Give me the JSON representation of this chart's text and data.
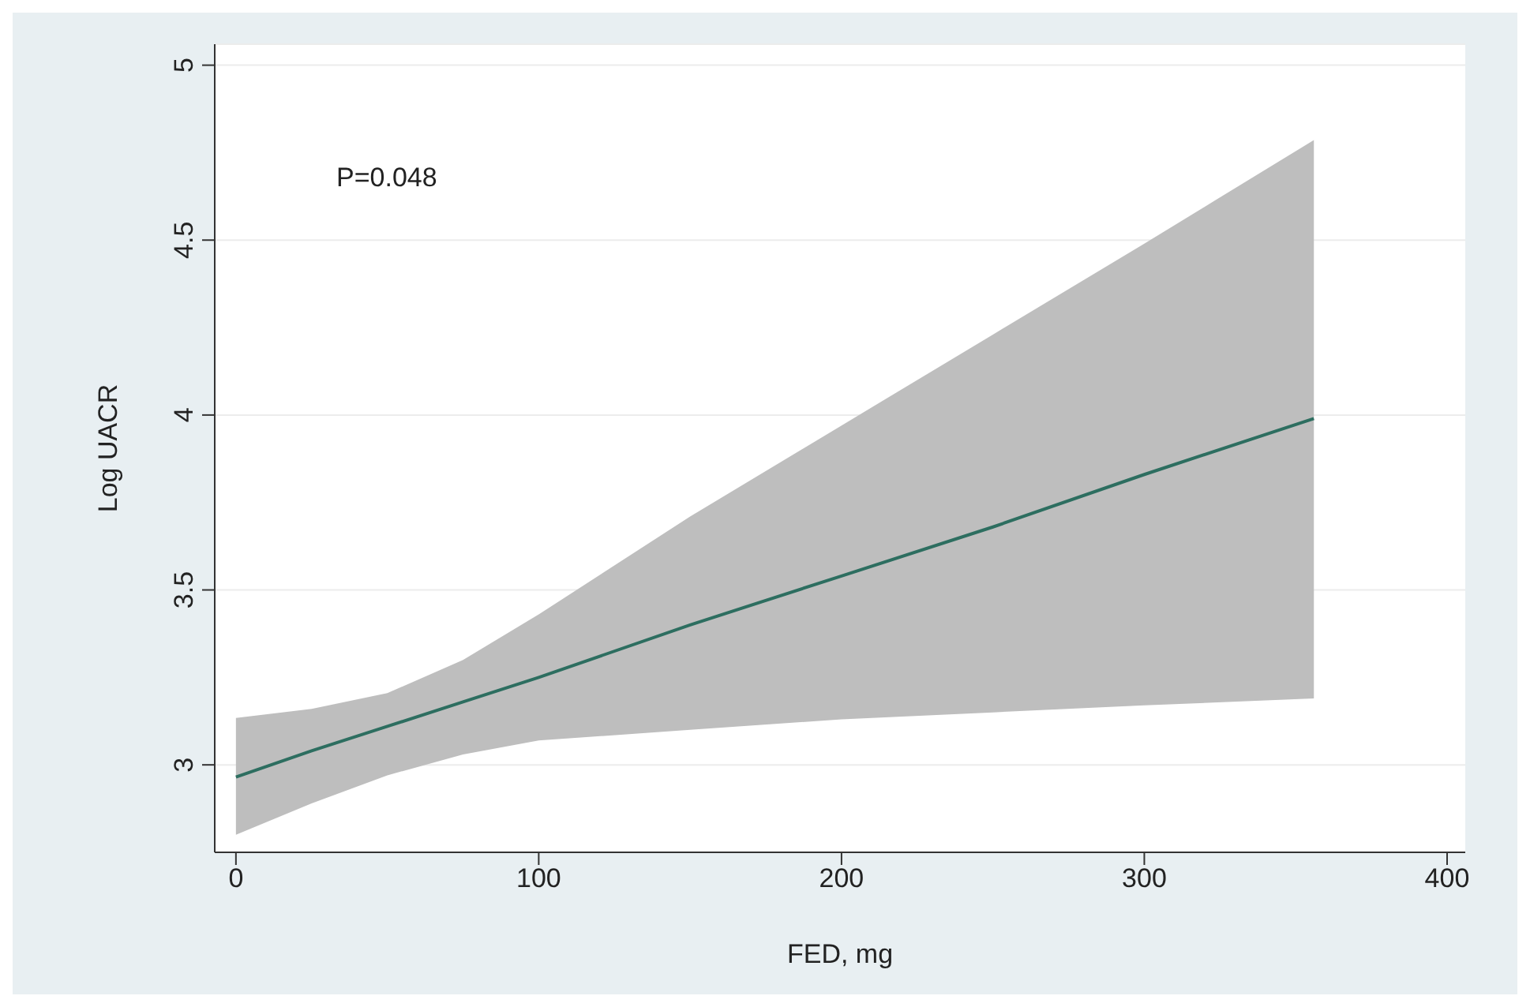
{
  "chart_data": {
    "type": "line",
    "xlabel": "FED, mg",
    "ylabel": "Log UACR",
    "annotations": [
      "P=0.048"
    ],
    "x": [
      0,
      25,
      50,
      75,
      100,
      150,
      200,
      250,
      300,
      356
    ],
    "series": [
      {
        "color": "#2d6e60",
        "values": [
          2.965,
          3.04,
          3.11,
          3.18,
          3.25,
          3.4,
          3.54,
          3.68,
          3.83,
          3.99
        ],
        "lower": [
          2.8,
          2.89,
          2.97,
          3.03,
          3.07,
          3.1,
          3.13,
          3.15,
          3.17,
          3.19
        ],
        "upper": [
          3.134,
          3.16,
          3.205,
          3.3,
          3.43,
          3.71,
          3.97,
          4.23,
          4.49,
          4.786
        ]
      }
    ],
    "xlim": [
      -7,
      406
    ],
    "xticks": [
      0,
      100,
      200,
      300,
      400
    ],
    "ylim": [
      2.75,
      5.06
    ],
    "yticks": [
      3,
      3.5,
      4,
      4.5,
      5
    ],
    "grid": "y",
    "marker": "none",
    "line_style": "solid"
  }
}
